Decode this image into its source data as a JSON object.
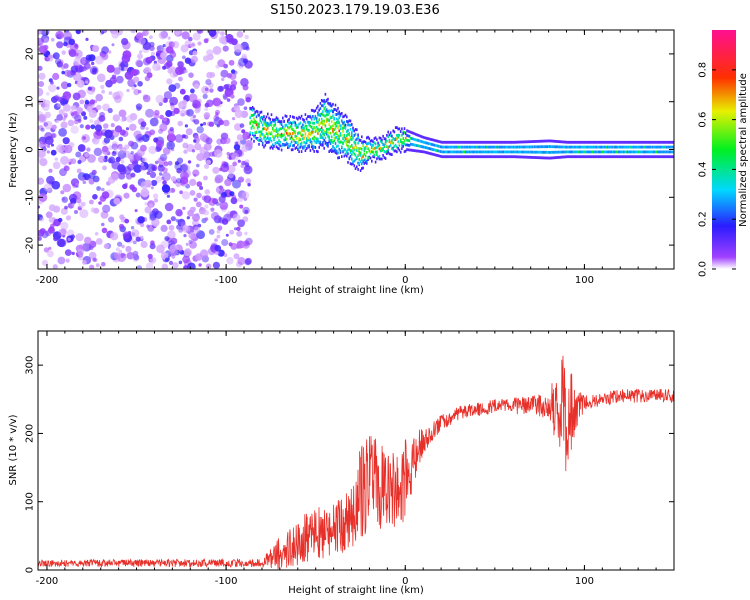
{
  "figure": {
    "title": "S150.2023.179.19.03.E36"
  },
  "chart_data": [
    {
      "type": "heatmap",
      "xlabel": "Height of straight line (km)",
      "ylabel": "Frequency (Hz)",
      "xlim": [
        -205,
        150
      ],
      "ylim": [
        -25,
        25
      ],
      "xticks": [
        -200,
        -100,
        0,
        100
      ],
      "yticks": [
        -20,
        -10,
        0,
        10,
        20
      ],
      "noise_region_x": [
        -205,
        -87
      ],
      "signal_band": {
        "x": [
          -87,
          -80,
          -70,
          -60,
          -50,
          -45,
          -40,
          -35,
          -30,
          -25,
          -20,
          -15,
          -10,
          -5,
          0,
          10,
          20,
          40,
          60,
          80,
          90,
          100,
          120,
          150
        ],
        "center_hz": [
          6,
          4,
          3.5,
          3,
          4,
          6,
          4,
          3,
          1,
          -1,
          0,
          0,
          1,
          2,
          2,
          1,
          0,
          0,
          0,
          0,
          0,
          0,
          0,
          0
        ],
        "half_width_hz": [
          3,
          3,
          3,
          3,
          4,
          5,
          5,
          4,
          4,
          3,
          2,
          2,
          2,
          2,
          2,
          1.5,
          1.5,
          1.5,
          1.5,
          1.8,
          1.5,
          1.5,
          1.5,
          1.5
        ]
      },
      "colorbar": {
        "label": "Normalized spectral amplitude",
        "ticks": [
          0.0,
          0.2,
          0.4,
          0.6,
          0.8
        ],
        "range": [
          0,
          0.96
        ]
      }
    },
    {
      "type": "line",
      "xlabel": "Height of straight line (km)",
      "ylabel": "SNR (10 * v/v)",
      "xlim": [
        -205,
        150
      ],
      "ylim": [
        0,
        350
      ],
      "xticks": [
        -200,
        -100,
        0,
        100
      ],
      "yticks": [
        0,
        100,
        200,
        300
      ],
      "color": "#e8302a",
      "envelope": {
        "x": [
          -205,
          -80,
          -70,
          -60,
          -50,
          -40,
          -30,
          -25,
          -20,
          -15,
          -10,
          -5,
          0,
          5,
          10,
          15,
          20,
          30,
          40,
          50,
          60,
          70,
          80,
          85,
          88,
          90,
          93,
          95,
          100,
          110,
          120,
          130,
          140,
          150
        ],
        "mean": [
          10,
          10,
          25,
          40,
          55,
          60,
          75,
          110,
          130,
          125,
          120,
          115,
          130,
          160,
          190,
          200,
          215,
          230,
          235,
          240,
          240,
          240,
          240,
          240,
          230,
          220,
          230,
          235,
          245,
          250,
          255,
          255,
          255,
          255
        ],
        "spread": [
          5,
          6,
          25,
          35,
          40,
          40,
          45,
          70,
          80,
          70,
          55,
          55,
          60,
          40,
          20,
          15,
          12,
          10,
          10,
          10,
          12,
          15,
          20,
          60,
          85,
          100,
          60,
          30,
          12,
          10,
          10,
          10,
          10,
          10
        ]
      }
    }
  ]
}
